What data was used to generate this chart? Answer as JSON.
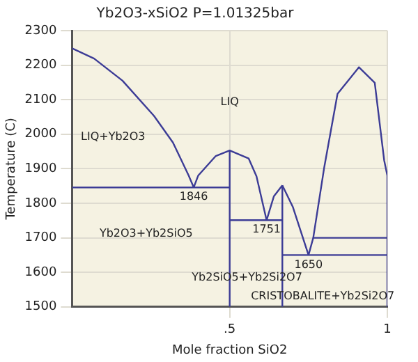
{
  "chart_data": {
    "type": "line",
    "title": "Yb2O3-xSiO2 P=1.01325bar",
    "xlabel": "Mole fraction SiO2",
    "ylabel": "Temperature (C)",
    "xlim": [
      0,
      1
    ],
    "xticks": [
      {
        "value": 0.5,
        "label": ".5"
      },
      1
    ],
    "ylim": [
      1500,
      2300
    ],
    "yticks": [
      1500,
      1600,
      1700,
      1800,
      1900,
      2000,
      2100,
      2200,
      2300
    ],
    "grid": true,
    "legend": false,
    "series": [
      {
        "color": "#3c3c96",
        "x": [
          0,
          0.07,
          0.16,
          0.26,
          0.32,
          0.37,
          0.386
        ],
        "values": [
          2249,
          2219,
          2155,
          2053,
          1976,
          1880,
          1846
        ]
      },
      {
        "color": "#3c3c96",
        "x": [
          0.386,
          0.4,
          0.456,
          0.5,
          0.56,
          0.585,
          0.617
        ],
        "values": [
          1846,
          1880,
          1937,
          1953,
          1930,
          1878,
          1751
        ]
      },
      {
        "color": "#3c3c96",
        "x": [
          0.617,
          0.64,
          0.667
        ],
        "values": [
          1751,
          1820,
          1852
        ]
      },
      {
        "color": "#3c3c96",
        "x": [
          0.667,
          0.7,
          0.75
        ],
        "values": [
          1852,
          1790,
          1650
        ]
      },
      {
        "color": "#3c3c96",
        "x": [
          0.75,
          0.765,
          0.8,
          0.842,
          0.91,
          0.96,
          0.99,
          1,
          1
        ],
        "values": [
          1650,
          1700,
          1905,
          2117,
          2194,
          2149,
          1924,
          1880,
          1500
        ]
      },
      {
        "color": "#3c3c96",
        "x": [
          0,
          0.5
        ],
        "values": [
          1846,
          1846
        ]
      },
      {
        "color": "#3c3c96",
        "x": [
          0.5,
          0.667
        ],
        "values": [
          1751,
          1751
        ]
      },
      {
        "color": "#3c3c96",
        "x": [
          0.667,
          1
        ],
        "values": [
          1650,
          1650
        ]
      },
      {
        "color": "#3c3c96",
        "x": [
          0.765,
          1
        ],
        "values": [
          1700,
          1700
        ]
      },
      {
        "color": "#3c3c96",
        "x": [
          0.5,
          0.5
        ],
        "values": [
          1500,
          1953
        ]
      },
      {
        "color": "#3c3c96",
        "x": [
          0.667,
          0.667
        ],
        "values": [
          1500,
          1852
        ]
      }
    ],
    "annotations": [
      "LIQ",
      "LIQ+Yb2O3",
      {
        "text": "1846",
        "x": 0.386,
        "y": 1846
      },
      {
        "text": "1751",
        "x": 0.617,
        "y": 1751
      },
      {
        "text": "1650",
        "x": 0.75,
        "y": 1650
      },
      "Yb2O3+Yb2SiO5",
      "Yb2SiO5+Yb2Si2O7",
      "CRISTOBALITE+Yb2Si2O7"
    ]
  }
}
